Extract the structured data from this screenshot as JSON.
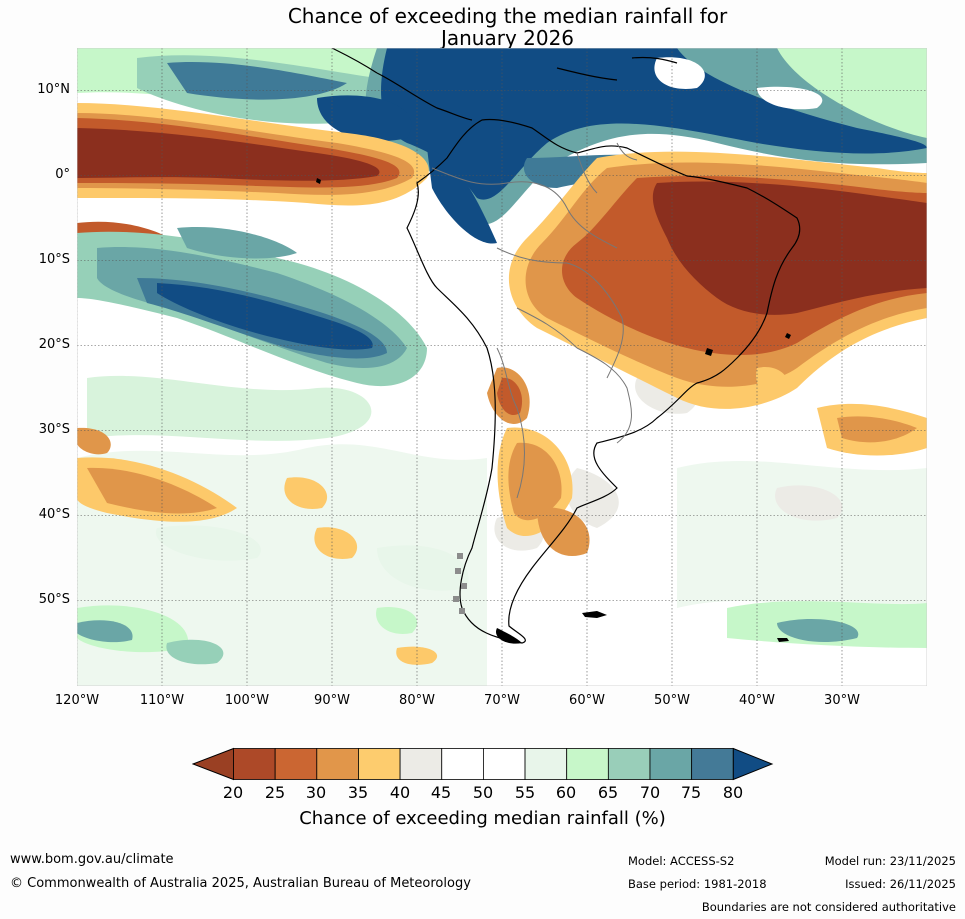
{
  "title": {
    "line1": "Chance of exceeding the median rainfall for",
    "line2": "January 2026"
  },
  "map": {
    "lat_labels": [
      "10°N",
      "0°",
      "10°S",
      "20°S",
      "30°S",
      "40°S",
      "50°S"
    ],
    "lon_labels": [
      "120°W",
      "110°W",
      "100°W",
      "90°W",
      "80°W",
      "70°W",
      "60°W",
      "50°W",
      "40°W",
      "30°W"
    ],
    "extent": {
      "lon_min": -120,
      "lon_max": -20,
      "lat_min": -60,
      "lat_max": 15
    },
    "gridlines": true,
    "colors": {
      "very_dry": "#8b2f1e",
      "dry": "#c25a2b",
      "mod_dry": "#e0964a",
      "slight_dry": "#fdc96a",
      "neutral_grey": "#ecebe6",
      "neutral": "#ffffff",
      "slight_wet": "#e8f6ea",
      "wet": "#c6f7c9",
      "mod_wet": "#96d0b8",
      "more_wet": "#6aa6a6",
      "very_wet": "#3f7a97",
      "extreme_wet": "#114c84"
    }
  },
  "colorbar": {
    "ticks": [
      "20",
      "25",
      "30",
      "35",
      "40",
      "45",
      "50",
      "55",
      "60",
      "65",
      "70",
      "75",
      "80"
    ],
    "colors": [
      "#9a4023",
      "#ad4928",
      "#cb6632",
      "#e1964a",
      "#fdcc6e",
      "#ecebe6",
      "#ffffff",
      "#ffffff",
      "#e8f5ea",
      "#c7f7c9",
      "#99ceb9",
      "#6aa6a6",
      "#447a97",
      "#114c84"
    ],
    "label": "Chance of exceeding median rainfall (%)"
  },
  "footer": {
    "website": "www.bom.gov.au/climate",
    "copyright": "© Commonwealth of Australia 2025, Australian Bureau of Meteorology",
    "model": "Model: ACCESS-S2",
    "base_period": "Base period: 1981-2018",
    "model_run": "Model run: 23/11/2025",
    "issued": "Issued: 26/11/2025",
    "disclaimer": "Boundaries are not considered authoritative"
  }
}
